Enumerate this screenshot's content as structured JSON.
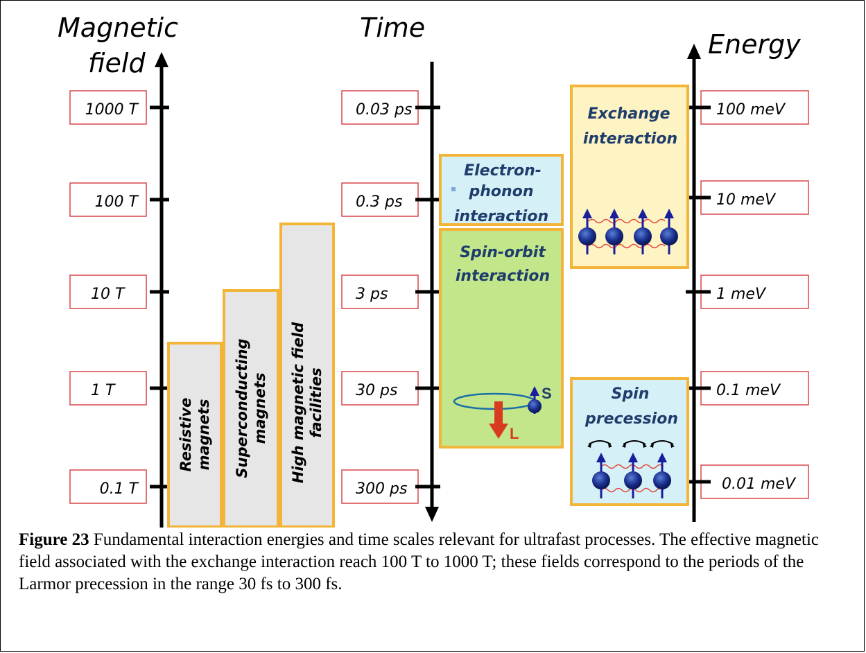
{
  "axes": {
    "field": {
      "title_line1": "Magnetic",
      "title_line2": "field",
      "ticks": [
        "1000 T",
        "100 T",
        "10 T",
        "1 T",
        "0.1 T"
      ]
    },
    "time": {
      "title": "Time",
      "ticks": [
        "0.03 ps",
        "0.3 ps",
        "3 ps",
        "30 ps",
        "300 ps"
      ]
    },
    "energy": {
      "title": "Energy",
      "ticks": [
        "100 meV",
        "10 meV",
        "1 meV",
        "0.1 meV",
        "0.01 meV"
      ]
    }
  },
  "magnets": [
    {
      "line1": "Resistive",
      "line2": "magnets"
    },
    {
      "line1": "Superconducting",
      "line2": "magnets"
    },
    {
      "line1": "High magnetic field",
      "line2": "facilities"
    }
  ],
  "interactions": {
    "electron_phonon": {
      "line1": "Electron-",
      "line2": "phonon",
      "line3": "interaction"
    },
    "spin_orbit": {
      "line1": "Spin-orbit",
      "line2": "interaction",
      "s_label": "S",
      "l_label": "L"
    },
    "exchange": {
      "line1": "Exchange",
      "line2": "interaction"
    },
    "spin_precession": {
      "line1": "Spin",
      "line2": "precession"
    }
  },
  "colors": {
    "tick_box_border": "#d8474b",
    "box_border": "#f2b53a",
    "magnet_fill": "#e6e6e6",
    "light_blue_fill": "#d6f0f8",
    "green_fill": "#c3e68b",
    "yellow_fill": "#fdf3c3",
    "label_blue": "#1e3d6b",
    "spin_blue": "#1a1e9c",
    "wave_red": "#e0463a"
  },
  "caption": {
    "label": "Figure 23",
    "text": " Fundamental interaction energies and time scales relevant for ultrafast processes. The effective magnetic field associated with the exchange interaction reach 100 T to 1000 T; these fields correspond to the periods of the Larmor precession in the range 30 fs to 300 fs."
  }
}
